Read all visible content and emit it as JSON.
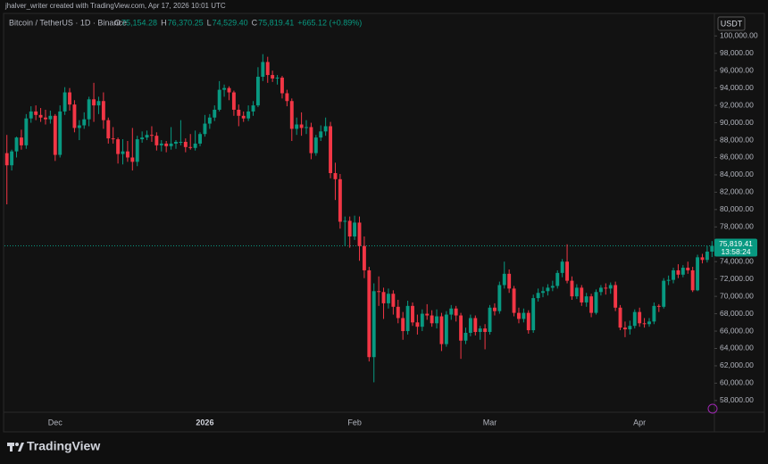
{
  "watermark": "jhalver_writer created with TradingView.com, Apr 17, 2026 10:01 UTC",
  "brand": "TradingView",
  "chart_data": {
    "type": "candlestick",
    "title": "Bitcoin / TetherUS · 1D · Binance",
    "legend_values": [
      {
        "letter": "O",
        "label": "75,154.28"
      },
      {
        "letter": "H",
        "label": "76,370.25"
      },
      {
        "letter": "L",
        "label": "74,529.40"
      },
      {
        "letter": "C",
        "label": "75,819.41"
      }
    ],
    "change_label": "+665.12 (+0.89%)",
    "currency": "USDT",
    "last_price": {
      "value": 75819.41,
      "label": "75,819.41"
    },
    "countdown": "13:58:24",
    "up_color": "#089981",
    "down_color": "#f23645",
    "grid": false,
    "ylim": [
      56650,
      102600
    ],
    "yticks": [
      {
        "value": 58000,
        "label": "58,000.00"
      },
      {
        "value": 60000,
        "label": "60,000.00"
      },
      {
        "value": 62000,
        "label": "62,000.00"
      },
      {
        "value": 64000,
        "label": "64,000.00"
      },
      {
        "value": 66000,
        "label": "66,000.00"
      },
      {
        "value": 68000,
        "label": "68,000.00"
      },
      {
        "value": 70000,
        "label": "70,000.00"
      },
      {
        "value": 72000,
        "label": "72,000.00"
      },
      {
        "value": 74000,
        "label": "74,000.00"
      },
      {
        "value": 76000,
        "label": "76,000.00"
      },
      {
        "value": 78000,
        "label": "78,000.00"
      },
      {
        "value": 80000,
        "label": "80,000.00"
      },
      {
        "value": 82000,
        "label": "82,000.00"
      },
      {
        "value": 84000,
        "label": "84,000.00"
      },
      {
        "value": 86000,
        "label": "86,000.00"
      },
      {
        "value": 88000,
        "label": "88,000.00"
      },
      {
        "value": 90000,
        "label": "90,000.00"
      },
      {
        "value": 92000,
        "label": "92,000.00"
      },
      {
        "value": 94000,
        "label": "94,000.00"
      },
      {
        "value": 96000,
        "label": "96,000.00"
      },
      {
        "value": 98000,
        "label": "98,000.00"
      },
      {
        "value": 100000,
        "label": "100,000.00"
      }
    ],
    "categories": [
      null,
      null,
      null,
      null,
      null,
      null,
      null,
      null,
      null,
      null,
      "Dec",
      null,
      null,
      null,
      null,
      null,
      null,
      null,
      null,
      null,
      null,
      null,
      null,
      null,
      null,
      null,
      null,
      null,
      null,
      null,
      null,
      null,
      null,
      null,
      null,
      null,
      null,
      null,
      null,
      null,
      null,
      "2026",
      null,
      null,
      null,
      null,
      null,
      null,
      null,
      null,
      null,
      null,
      null,
      null,
      null,
      null,
      null,
      null,
      null,
      null,
      null,
      null,
      null,
      null,
      null,
      null,
      null,
      null,
      null,
      null,
      null,
      null,
      "Feb",
      null,
      null,
      null,
      null,
      null,
      null,
      null,
      null,
      null,
      null,
      null,
      null,
      null,
      null,
      null,
      null,
      null,
      null,
      null,
      null,
      null,
      null,
      null,
      null,
      null,
      null,
      null,
      "Mar",
      null,
      null,
      null,
      null,
      null,
      null,
      null,
      null,
      null,
      null,
      null,
      null,
      null,
      null,
      null,
      null,
      null,
      null,
      null,
      null,
      null,
      null,
      null,
      null,
      null,
      null,
      null,
      null,
      null,
      null,
      "Apr",
      null,
      null,
      null,
      null,
      null,
      null,
      null,
      null,
      null,
      null,
      null,
      null,
      null,
      null,
      null
    ],
    "ohlc": [
      [
        86500,
        88600,
        80600,
        85100
      ],
      [
        85100,
        86900,
        84500,
        86700
      ],
      [
        86700,
        88400,
        86000,
        88300
      ],
      [
        88300,
        89200,
        86900,
        87400
      ],
      [
        87400,
        91000,
        87000,
        90500
      ],
      [
        90500,
        91900,
        90000,
        91300
      ],
      [
        91300,
        92000,
        90300,
        90900
      ],
      [
        90900,
        91700,
        90100,
        90600
      ],
      [
        90600,
        91500,
        89800,
        90400
      ],
      [
        90400,
        91400,
        89900,
        90800
      ],
      [
        90800,
        91000,
        85600,
        86300
      ],
      [
        86300,
        92000,
        86000,
        91300
      ],
      [
        91300,
        94100,
        90900,
        93500
      ],
      [
        93500,
        94000,
        91400,
        92100
      ],
      [
        92100,
        92600,
        88900,
        89400
      ],
      [
        89400,
        90300,
        88000,
        89700
      ],
      [
        89700,
        91200,
        89300,
        90400
      ],
      [
        90400,
        93000,
        89600,
        92700
      ],
      [
        92700,
        94600,
        90100,
        92000
      ],
      [
        92000,
        93000,
        91000,
        92500
      ],
      [
        92500,
        93500,
        89300,
        90300
      ],
      [
        90300,
        90600,
        87600,
        88200
      ],
      [
        88200,
        89500,
        87600,
        88100
      ],
      [
        88100,
        88300,
        85300,
        86400
      ],
      [
        86400,
        88100,
        85200,
        86700
      ],
      [
        86700,
        87900,
        85500,
        86000
      ],
      [
        86000,
        89400,
        84500,
        85500
      ],
      [
        85500,
        88500,
        85000,
        88100
      ],
      [
        88100,
        89000,
        87700,
        88300
      ],
      [
        88300,
        89100,
        88000,
        88600
      ],
      [
        88600,
        89600,
        87800,
        88500
      ],
      [
        88500,
        88900,
        86800,
        87400
      ],
      [
        87400,
        88000,
        86700,
        87600
      ],
      [
        87600,
        87900,
        86600,
        87300
      ],
      [
        87300,
        89500,
        86900,
        87600
      ],
      [
        87600,
        88000,
        87000,
        87800
      ],
      [
        87800,
        90300,
        87400,
        87800
      ],
      [
        87800,
        88200,
        86600,
        87200
      ],
      [
        87200,
        88700,
        86900,
        87100
      ],
      [
        87100,
        89100,
        86800,
        87600
      ],
      [
        87600,
        88900,
        87300,
        88700
      ],
      [
        88700,
        90900,
        88400,
        89900
      ],
      [
        89900,
        91000,
        89300,
        90600
      ],
      [
        90600,
        92000,
        90200,
        91500
      ],
      [
        91500,
        94800,
        91300,
        93800
      ],
      [
        93800,
        94400,
        93000,
        94000
      ],
      [
        94000,
        94200,
        92600,
        93500
      ],
      [
        93500,
        93700,
        90800,
        91500
      ],
      [
        91500,
        92100,
        89600,
        90800
      ],
      [
        90800,
        91300,
        90100,
        90500
      ],
      [
        90500,
        92000,
        90200,
        91300
      ],
      [
        91300,
        92500,
        90800,
        92000
      ],
      [
        92000,
        96400,
        91800,
        95300
      ],
      [
        95300,
        97900,
        94800,
        97000
      ],
      [
        97000,
        97600,
        94600,
        95500
      ],
      [
        95500,
        96000,
        94700,
        95100
      ],
      [
        95100,
        95500,
        94400,
        95200
      ],
      [
        95200,
        95400,
        92800,
        93400
      ],
      [
        93400,
        93800,
        91900,
        92500
      ],
      [
        92500,
        92800,
        87900,
        89300
      ],
      [
        89300,
        90600,
        88600,
        89800
      ],
      [
        89800,
        91200,
        88500,
        89400
      ],
      [
        89400,
        90300,
        88700,
        89500
      ],
      [
        89500,
        90000,
        85800,
        86500
      ],
      [
        86500,
        88600,
        86200,
        88300
      ],
      [
        88300,
        89700,
        87900,
        89000
      ],
      [
        89000,
        90600,
        88500,
        89600
      ],
      [
        89600,
        90100,
        83600,
        84200
      ],
      [
        84200,
        85400,
        81100,
        83500
      ],
      [
        83500,
        84100,
        77800,
        78600
      ],
      [
        78600,
        79200,
        75800,
        78700
      ],
      [
        78700,
        79200,
        75600,
        76900
      ],
      [
        76900,
        79300,
        76500,
        78500
      ],
      [
        78500,
        79200,
        74100,
        75800
      ],
      [
        75800,
        76900,
        72100,
        73000
      ],
      [
        73000,
        73400,
        62500,
        63000
      ],
      [
        63000,
        71500,
        60100,
        70600
      ],
      [
        70600,
        72300,
        68900,
        70500
      ],
      [
        70500,
        71000,
        67400,
        69200
      ],
      [
        69200,
        70900,
        68600,
        70300
      ],
      [
        70300,
        70700,
        67900,
        68800
      ],
      [
        68800,
        69600,
        66900,
        67500
      ],
      [
        67500,
        68200,
        65000,
        66000
      ],
      [
        66000,
        69500,
        65600,
        68900
      ],
      [
        68900,
        69300,
        66600,
        67000
      ],
      [
        67000,
        67900,
        65600,
        66500
      ],
      [
        66500,
        68500,
        66000,
        68000
      ],
      [
        68000,
        69100,
        67300,
        67800
      ],
      [
        67800,
        68400,
        66500,
        66900
      ],
      [
        66900,
        68500,
        66300,
        67700
      ],
      [
        67700,
        68100,
        63700,
        64500
      ],
      [
        64500,
        68300,
        64200,
        67900
      ],
      [
        67900,
        69000,
        67300,
        68600
      ],
      [
        68600,
        68900,
        67100,
        67800
      ],
      [
        67800,
        68100,
        62800,
        64900
      ],
      [
        64900,
        66400,
        64500,
        65800
      ],
      [
        65800,
        67900,
        65400,
        67500
      ],
      [
        67500,
        67800,
        65500,
        65900
      ],
      [
        65900,
        66600,
        65000,
        66300
      ],
      [
        66300,
        66800,
        63900,
        65900
      ],
      [
        65900,
        69000,
        65600,
        68700
      ],
      [
        68700,
        69200,
        67800,
        68300
      ],
      [
        68300,
        71700,
        68000,
        71300
      ],
      [
        71300,
        74000,
        70900,
        72600
      ],
      [
        72600,
        73100,
        70400,
        70900
      ],
      [
        70900,
        71200,
        67700,
        68100
      ],
      [
        68100,
        68700,
        66900,
        67400
      ],
      [
        67400,
        68600,
        67000,
        68100
      ],
      [
        68100,
        68400,
        65700,
        66100
      ],
      [
        66100,
        70200,
        65800,
        69800
      ],
      [
        69800,
        70900,
        69400,
        70400
      ],
      [
        70400,
        71100,
        69900,
        70600
      ],
      [
        70600,
        71400,
        70100,
        71000
      ],
      [
        71000,
        71800,
        70600,
        71200
      ],
      [
        71200,
        73000,
        70900,
        72700
      ],
      [
        72700,
        74300,
        72200,
        74000
      ],
      [
        74000,
        76000,
        71500,
        71800
      ],
      [
        71800,
        72300,
        69600,
        70000
      ],
      [
        70000,
        71400,
        69700,
        71000
      ],
      [
        71000,
        71300,
        68900,
        69300
      ],
      [
        69300,
        70400,
        68800,
        70000
      ],
      [
        70000,
        70300,
        67600,
        68100
      ],
      [
        68100,
        70800,
        67900,
        70500
      ],
      [
        70500,
        71300,
        70100,
        71000
      ],
      [
        71000,
        71500,
        70200,
        70900
      ],
      [
        70900,
        71600,
        70300,
        71300
      ],
      [
        71300,
        71700,
        68300,
        68700
      ],
      [
        68700,
        69000,
        66100,
        66400
      ],
      [
        66400,
        67100,
        65300,
        66200
      ],
      [
        66200,
        67200,
        65600,
        66600
      ],
      [
        66600,
        68500,
        66300,
        68200
      ],
      [
        68200,
        68700,
        66500,
        66900
      ],
      [
        66900,
        67500,
        66400,
        66800
      ],
      [
        66800,
        67500,
        66500,
        67100
      ],
      [
        67100,
        69300,
        66800,
        68900
      ],
      [
        68900,
        69100,
        68200,
        68800
      ],
      [
        68800,
        72100,
        68600,
        71800
      ],
      [
        71800,
        72400,
        71300,
        71900
      ],
      [
        71900,
        73300,
        71500,
        73000
      ],
      [
        73000,
        73700,
        72100,
        72500
      ],
      [
        72500,
        73600,
        72200,
        73300
      ],
      [
        73300,
        74000,
        72600,
        73000
      ],
      [
        73000,
        73400,
        70500,
        70700
      ],
      [
        70700,
        74800,
        70600,
        74500
      ],
      [
        74500,
        74900,
        73800,
        74200
      ],
      [
        74200,
        75800,
        73900,
        75154.28
      ],
      [
        75154.28,
        76370.25,
        74529.4,
        75819.41
      ]
    ]
  }
}
